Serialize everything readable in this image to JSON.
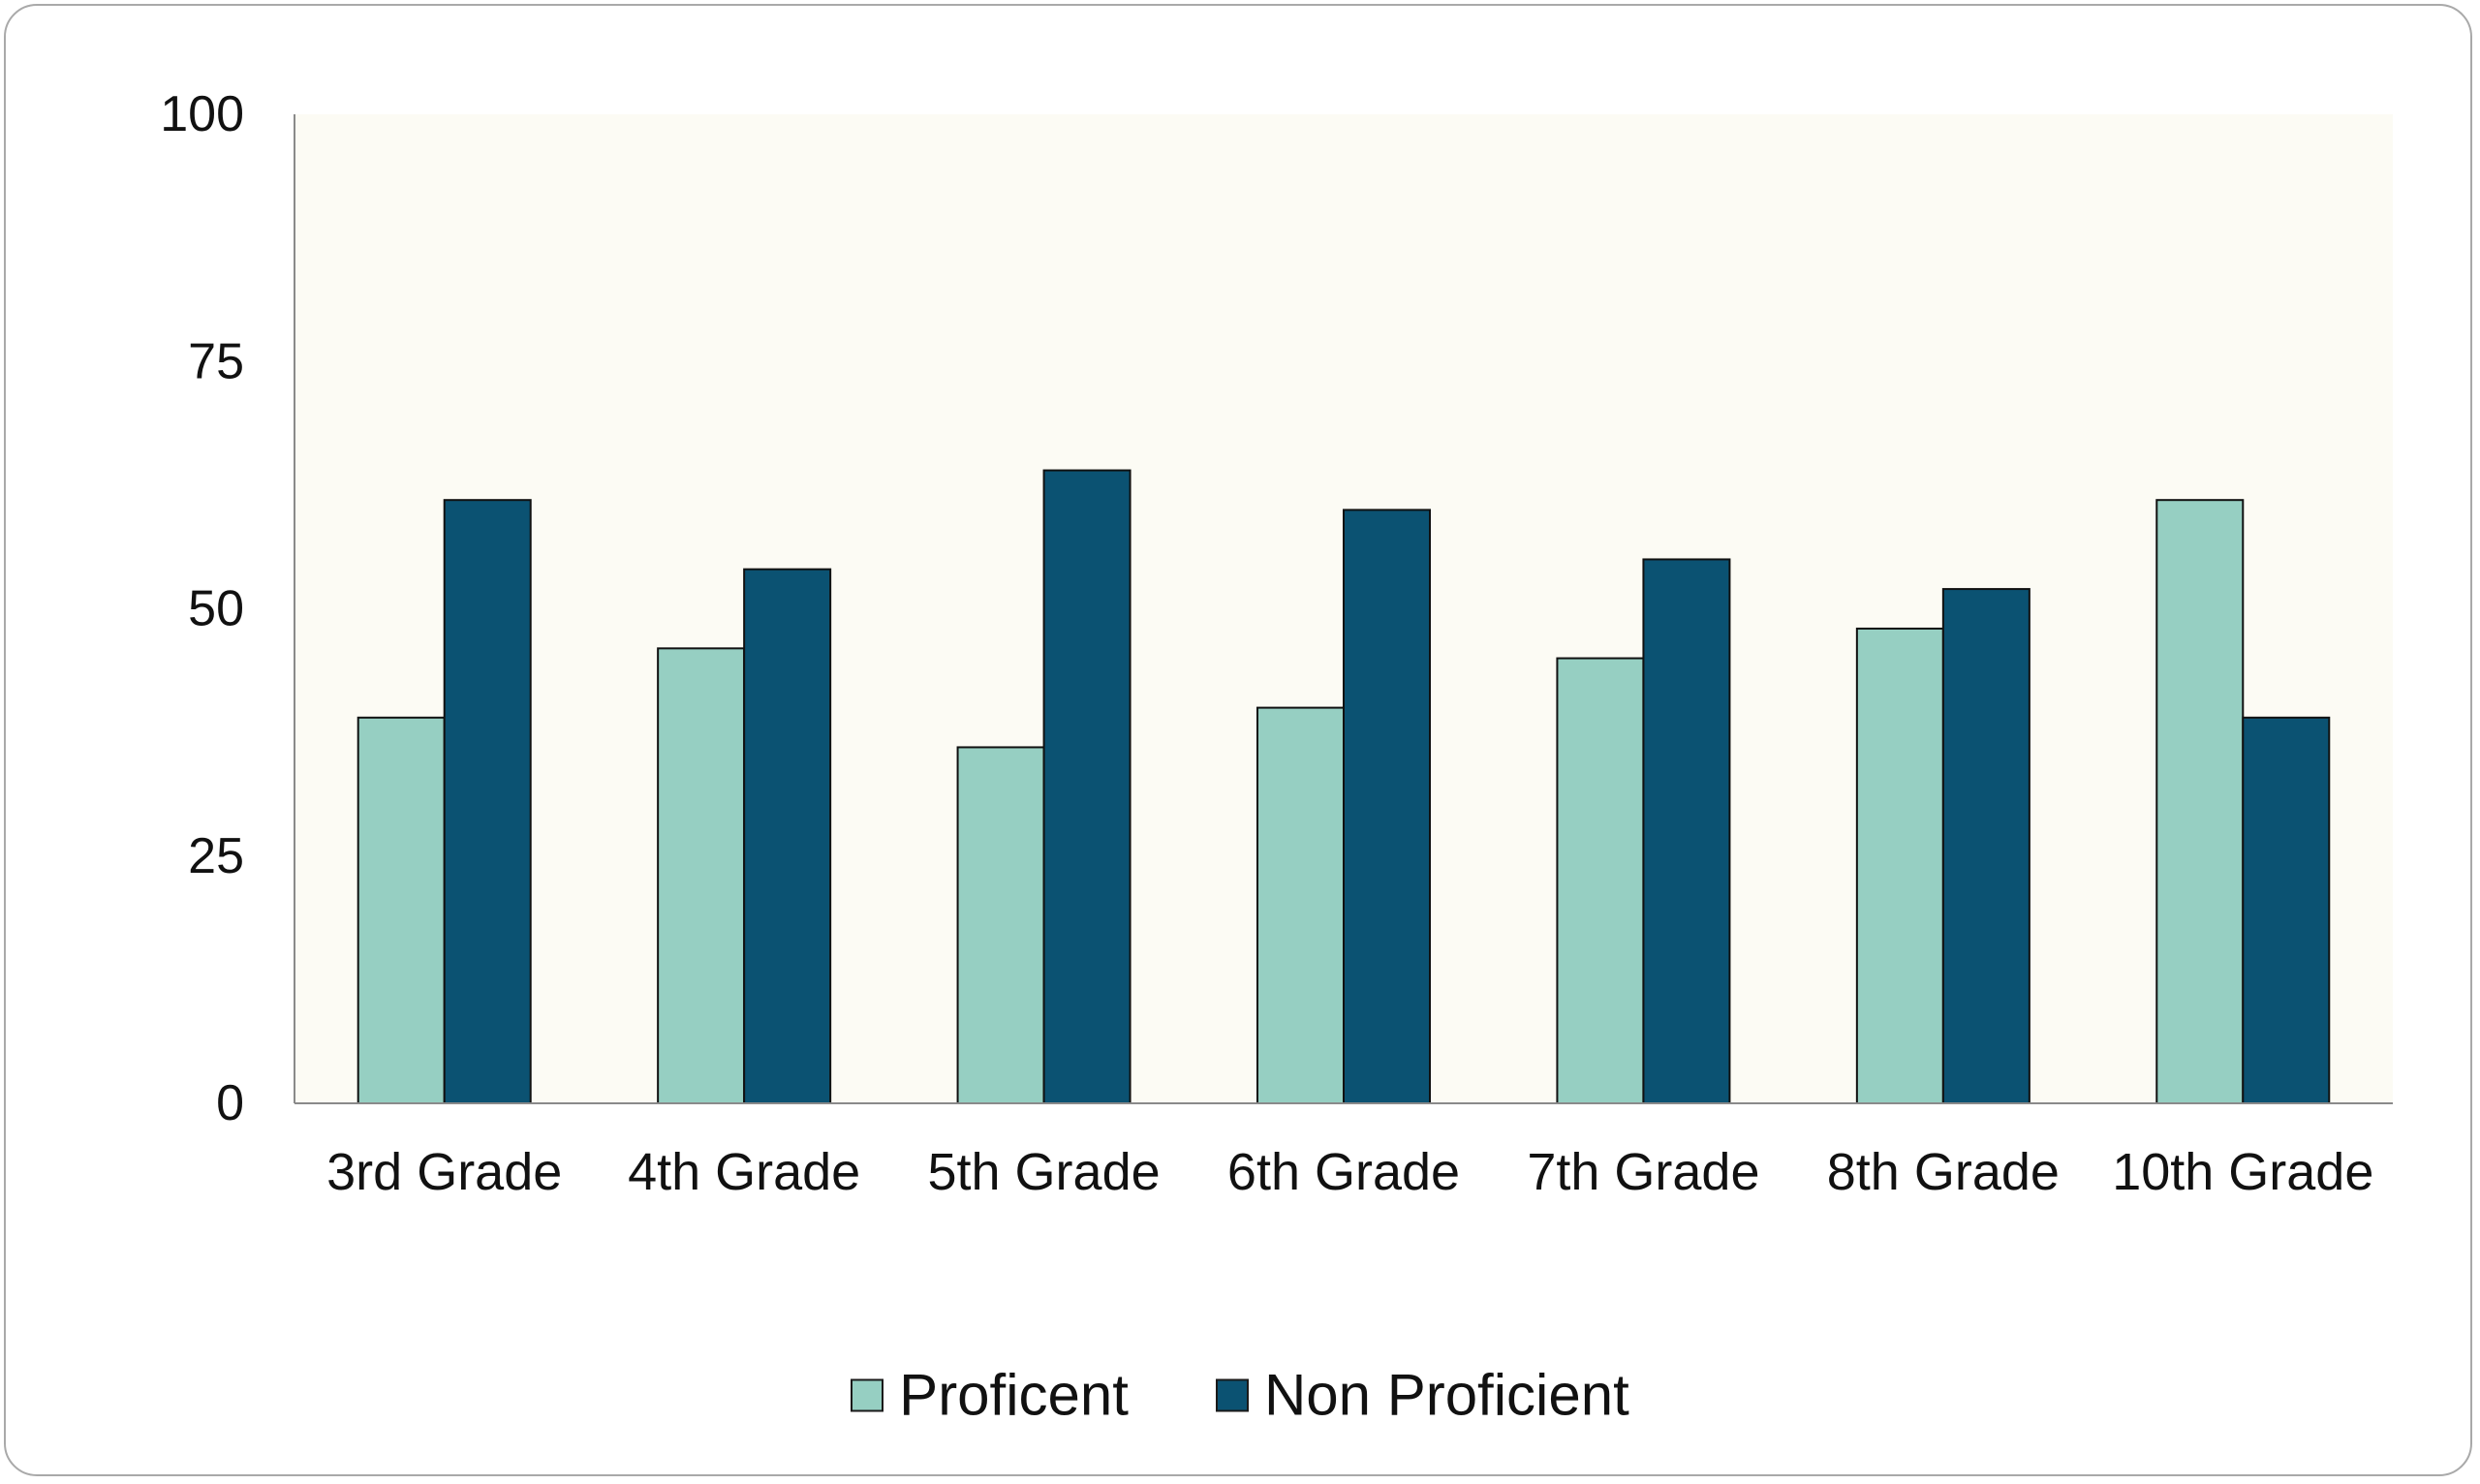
{
  "chart_data": {
    "type": "bar",
    "title": "",
    "xlabel": "",
    "ylabel": "",
    "ylim": [
      0,
      100
    ],
    "yticks": [
      "0",
      "25",
      "50",
      "75",
      "100"
    ],
    "categories": [
      "3rd Grade",
      "4th Grade",
      "5th Grade",
      "6th Grade",
      "7th Grade",
      "8th Grade",
      "10th Grade"
    ],
    "series": [
      {
        "name": "Proficent",
        "color": "#96cfc2",
        "values": [
          39,
          46,
          36,
          40,
          45,
          48,
          61
        ]
      },
      {
        "name": "Non Proficient",
        "color": "#0b5272",
        "values": [
          61,
          54,
          64,
          60,
          55,
          52,
          39
        ]
      }
    ],
    "legend_position": "bottom",
    "grid": false,
    "plot_background": "#fcfbf4"
  }
}
